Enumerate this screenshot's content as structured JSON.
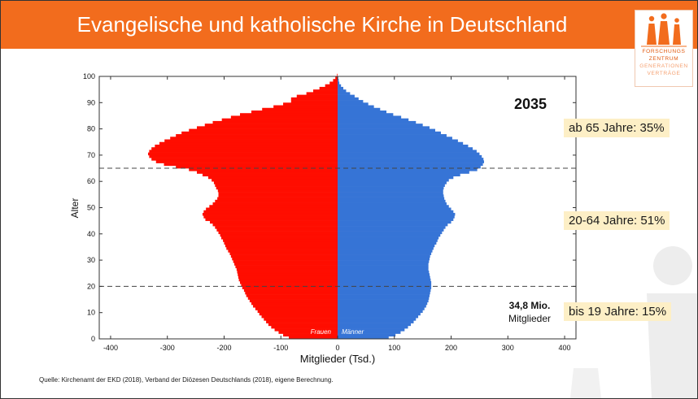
{
  "header": {
    "title": "Evangelische und katholische Kirche in Deutschland"
  },
  "logo": {
    "lines": [
      "FORSCHUNGS",
      "ZENTRUM",
      "GENERATIONEN",
      "VERTRÄGE"
    ]
  },
  "callouts": {
    "top": "ab 65 Jahre: 35%",
    "middle": "20-64 Jahre: 51%",
    "bottom": "bis 19 Jahre: 15%"
  },
  "source": "Quelle: Kirchenamt der EKD (2018), Verband der Diözesen Deutschlands (2018), eigene Berechnung.",
  "colors": {
    "header": "#f26c1d",
    "women": "#ff0d00",
    "men": "#3674d6",
    "callout_bg": "#fdefc6"
  },
  "chart_data": {
    "type": "bar",
    "orientation": "horizontal",
    "subtype": "population-pyramid",
    "year_label": "2035",
    "members_value": "34,8 Mio.",
    "members_label": "Mitglieder",
    "xlabel": "Mitglieder (Tsd.)",
    "ylabel": "Alter",
    "xlim": [
      -420,
      420
    ],
    "ylim": [
      0,
      100
    ],
    "xticks": [
      -400,
      -300,
      -200,
      -100,
      0,
      100,
      200,
      300,
      400
    ],
    "xtick_labels": [
      "-400",
      "-300",
      "-200",
      "-100",
      "0",
      "100",
      "200",
      "300",
      "400"
    ],
    "yticks": [
      0,
      10,
      20,
      30,
      40,
      50,
      60,
      70,
      80,
      90,
      100
    ],
    "ytick_labels": [
      "0",
      "10",
      "20",
      "30",
      "40",
      "50",
      "60",
      "70",
      "80",
      "90",
      "100"
    ],
    "reference_lines_y": [
      20,
      65
    ],
    "series": [
      {
        "name": "Frauen",
        "side": "left",
        "ages": [
          0,
          1,
          2,
          3,
          4,
          5,
          6,
          7,
          8,
          9,
          10,
          11,
          12,
          13,
          14,
          15,
          16,
          17,
          18,
          19,
          20,
          21,
          22,
          23,
          24,
          25,
          26,
          27,
          28,
          29,
          30,
          31,
          32,
          33,
          34,
          35,
          36,
          37,
          38,
          39,
          40,
          41,
          42,
          43,
          44,
          45,
          46,
          47,
          48,
          49,
          50,
          51,
          52,
          53,
          54,
          55,
          56,
          57,
          58,
          59,
          60,
          61,
          62,
          63,
          64,
          65,
          66,
          67,
          68,
          69,
          70,
          71,
          72,
          73,
          74,
          75,
          76,
          77,
          78,
          79,
          80,
          81,
          82,
          83,
          84,
          85,
          86,
          87,
          88,
          89,
          90,
          91,
          92,
          93,
          94,
          95,
          96,
          97,
          98,
          99,
          100
        ],
        "values": [
          86,
          96,
          104,
          111,
          117,
          122,
          126,
          130,
          134,
          138,
          141,
          145,
          149,
          152,
          155,
          158,
          161,
          163,
          165,
          168,
          170,
          172,
          174,
          175,
          176,
          177,
          178,
          180,
          182,
          184,
          186,
          188,
          190,
          193,
          196,
          198,
          200,
          202,
          205,
          207,
          210,
          213,
          216,
          220,
          225,
          233,
          236,
          238,
          236,
          232,
          226,
          220,
          216,
          212,
          210,
          210,
          211,
          214,
          216,
          218,
          222,
          228,
          238,
          248,
          262,
          285,
          306,
          320,
          328,
          332,
          334,
          332,
          328,
          322,
          314,
          305,
          295,
          285,
          275,
          262,
          248,
          234,
          220,
          204,
          188,
          172,
          152,
          133,
          113,
          96,
          82,
          82,
          72,
          55,
          43,
          32,
          22,
          14,
          8,
          4,
          1
        ]
      },
      {
        "name": "Männer",
        "side": "right",
        "ages": [
          0,
          1,
          2,
          3,
          4,
          5,
          6,
          7,
          8,
          9,
          10,
          11,
          12,
          13,
          14,
          15,
          16,
          17,
          18,
          19,
          20,
          21,
          22,
          23,
          24,
          25,
          26,
          27,
          28,
          29,
          30,
          31,
          32,
          33,
          34,
          35,
          36,
          37,
          38,
          39,
          40,
          41,
          42,
          43,
          44,
          45,
          46,
          47,
          48,
          49,
          50,
          51,
          52,
          53,
          54,
          55,
          56,
          57,
          58,
          59,
          60,
          61,
          62,
          63,
          64,
          65,
          66,
          67,
          68,
          69,
          70,
          71,
          72,
          73,
          74,
          75,
          76,
          77,
          78,
          79,
          80,
          81,
          82,
          83,
          84,
          85,
          86,
          87,
          88,
          89,
          90,
          91,
          92,
          93,
          94,
          95,
          96,
          97,
          98,
          99,
          100
        ],
        "values": [
          90,
          102,
          111,
          118,
          124,
          129,
          134,
          138,
          142,
          146,
          150,
          153,
          156,
          158,
          160,
          161,
          162,
          163,
          164,
          165,
          165,
          165,
          164,
          163,
          162,
          161,
          160,
          160,
          160,
          161,
          162,
          163,
          165,
          167,
          169,
          171,
          174,
          176,
          178,
          181,
          184,
          187,
          190,
          194,
          200,
          204,
          206,
          207,
          204,
          200,
          196,
          192,
          190,
          188,
          187,
          186,
          186,
          187,
          189,
          192,
          196,
          204,
          216,
          232,
          246,
          252,
          256,
          258,
          257,
          254,
          250,
          245,
          238,
          230,
          221,
          212,
          202,
          192,
          182,
          172,
          162,
          150,
          138,
          125,
          112,
          98,
          86,
          75,
          64,
          54,
          45,
          37,
          30,
          22,
          15,
          10,
          6,
          3,
          2,
          1,
          0
        ]
      }
    ]
  }
}
